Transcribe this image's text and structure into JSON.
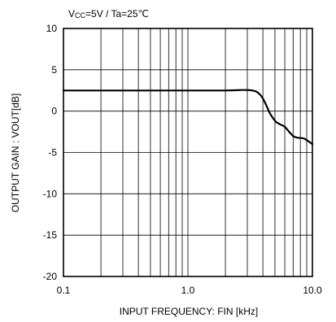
{
  "chart_data": {
    "type": "line",
    "title": "",
    "condition": {
      "prefix": "V",
      "subscript": "CC",
      "text": "=5V / Ta=25℃"
    },
    "xlabel": "INPUT FREQUENCY: FIN [kHz]",
    "ylabel": "OUTPUT GAIN : VOUT[dB]",
    "xscale": "log",
    "xlim": [
      0.1,
      10.0
    ],
    "ylim": [
      -20,
      10
    ],
    "grid": true,
    "legend": "none",
    "x_ticks": [
      0.1,
      1.0,
      10.0
    ],
    "x_tick_labels": [
      "0.1",
      "1.0",
      "10.0"
    ],
    "y_ticks": [
      10,
      5,
      0,
      -5,
      -10,
      -15,
      -20
    ],
    "y_tick_labels": [
      "10",
      "5",
      "0",
      "-5",
      "-10",
      "-15",
      "-20"
    ],
    "series": [
      {
        "x": [
          0.1,
          0.5,
          1.0,
          2.0,
          2.7,
          3.0,
          3.3,
          3.6,
          3.9,
          4.2,
          4.5,
          4.8,
          5.1,
          5.5,
          6.0,
          6.5,
          7.0,
          7.5,
          8.0,
          8.5,
          9.0,
          9.5,
          10.0
        ],
        "y": [
          2.5,
          2.5,
          2.5,
          2.5,
          2.55,
          2.55,
          2.5,
          2.3,
          1.8,
          0.9,
          -0.1,
          -0.8,
          -1.3,
          -1.6,
          -1.9,
          -2.5,
          -3.0,
          -3.2,
          -3.25,
          -3.3,
          -3.5,
          -3.75,
          -4.0
        ]
      }
    ]
  }
}
